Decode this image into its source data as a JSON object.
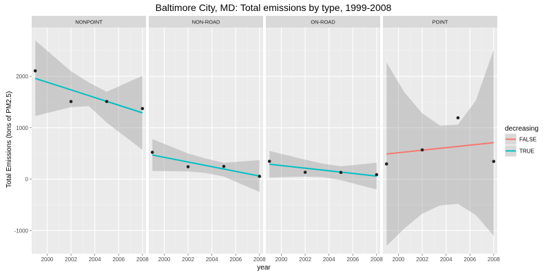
{
  "chart_data": {
    "type": "scatter",
    "title": "Baltimore City, MD: Total emissions by type, 1999-2008",
    "xlabel": "year",
    "ylabel": "Total Emissions (tons of PM2.5)",
    "xlim": [
      1998.7,
      2008.3
    ],
    "ylim": [
      -1450,
      2950
    ],
    "xticks": [
      2000,
      2002,
      2004,
      2006,
      2008
    ],
    "yticks": [
      -1000,
      0,
      1000,
      2000
    ],
    "grid": true,
    "legend": {
      "title": "decreasing",
      "position": "right",
      "entries": [
        {
          "label": "FALSE",
          "color": "#F8766D"
        },
        {
          "label": "TRUE",
          "color": "#00BFC4"
        }
      ]
    },
    "panels": [
      {
        "name": "NONPOINT",
        "points": [
          [
            1999,
            2107
          ],
          [
            2002,
            1510
          ],
          [
            2005,
            1510
          ],
          [
            2008,
            1373
          ]
        ],
        "fit": {
          "x": [
            1999,
            2008
          ],
          "y": [
            1960,
            1290
          ],
          "decreasing": "TRUE"
        },
        "band": [
          {
            "x": 1999,
            "lo": 1230,
            "hi": 2700
          },
          {
            "x": 2002,
            "lo": 1400,
            "hi": 2100
          },
          {
            "x": 2003.5,
            "lo": 1420,
            "hi": 1880
          },
          {
            "x": 2005,
            "lo": 1100,
            "hi": 1700
          },
          {
            "x": 2008,
            "lo": 570,
            "hi": 2010
          }
        ]
      },
      {
        "name": "NON-ROAD",
        "points": [
          [
            1999,
            522
          ],
          [
            2002,
            241
          ],
          [
            2005,
            248
          ],
          [
            2008,
            55
          ]
        ],
        "fit": {
          "x": [
            1999,
            2008
          ],
          "y": [
            470,
            60
          ],
          "decreasing": "TRUE"
        },
        "band": [
          {
            "x": 1999,
            "lo": 160,
            "hi": 780
          },
          {
            "x": 2002,
            "lo": 150,
            "hi": 500
          },
          {
            "x": 2003.5,
            "lo": 120,
            "hi": 400
          },
          {
            "x": 2005,
            "lo": 50,
            "hi": 320
          },
          {
            "x": 2008,
            "lo": -250,
            "hi": 370
          }
        ]
      },
      {
        "name": "ON-ROAD",
        "points": [
          [
            1999,
            347
          ],
          [
            2002,
            134
          ],
          [
            2005,
            130
          ],
          [
            2008,
            88
          ]
        ],
        "fit": {
          "x": [
            1999,
            2008
          ],
          "y": [
            290,
            60
          ],
          "decreasing": "TRUE"
        },
        "band": [
          {
            "x": 1999,
            "lo": 30,
            "hi": 550
          },
          {
            "x": 2002,
            "lo": 50,
            "hi": 380
          },
          {
            "x": 2003.5,
            "lo": 40,
            "hi": 300
          },
          {
            "x": 2005,
            "lo": -20,
            "hi": 250
          },
          {
            "x": 2008,
            "lo": -200,
            "hi": 320
          }
        ]
      },
      {
        "name": "POINT",
        "points": [
          [
            1999,
            296
          ],
          [
            2002,
            569
          ],
          [
            2005,
            1193
          ],
          [
            2008,
            345
          ]
        ],
        "fit": {
          "x": [
            1999,
            2008
          ],
          "y": [
            490,
            710
          ],
          "decreasing": "FALSE"
        },
        "band": [
          {
            "x": 1999,
            "lo": -1300,
            "hi": 2270
          },
          {
            "x": 2000.5,
            "lo": -960,
            "hi": 1690
          },
          {
            "x": 2002,
            "lo": -670,
            "hi": 1280
          },
          {
            "x": 2003.5,
            "lo": -510,
            "hi": 1040
          },
          {
            "x": 2005,
            "lo": -480,
            "hi": 1060
          },
          {
            "x": 2006.5,
            "lo": -700,
            "hi": 1530
          },
          {
            "x": 2008,
            "lo": -1100,
            "hi": 2520
          }
        ]
      }
    ]
  }
}
